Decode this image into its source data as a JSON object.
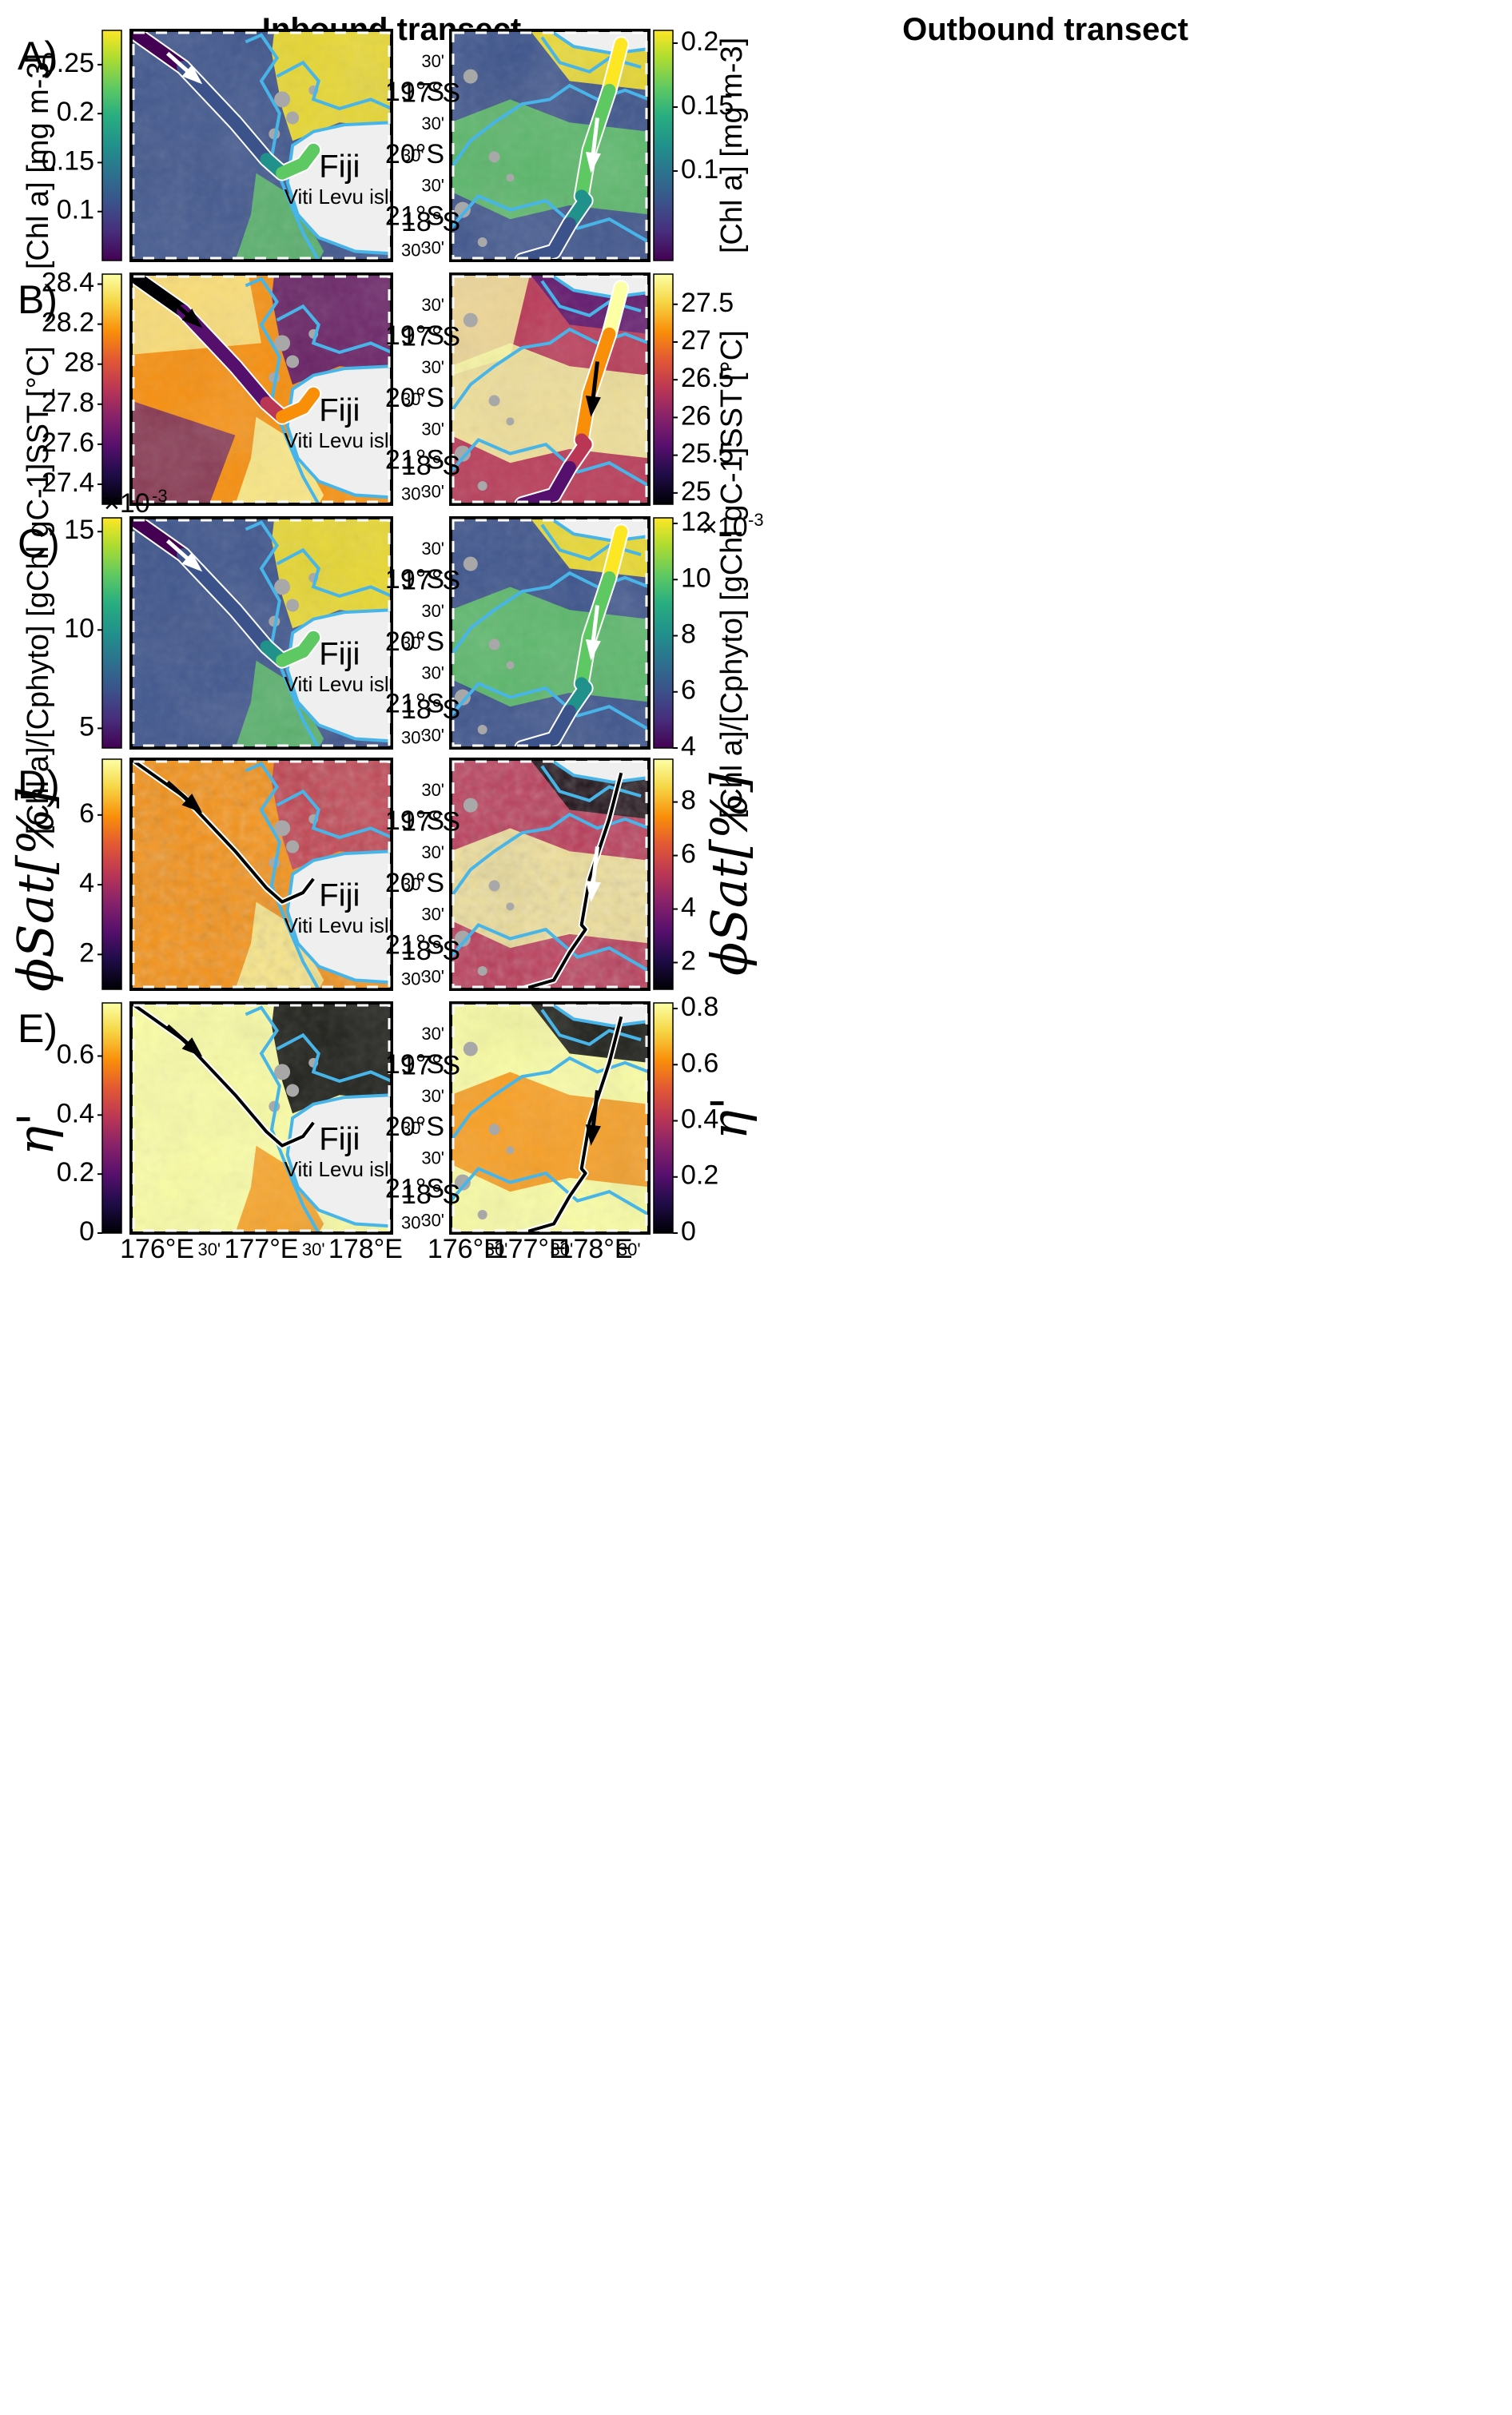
{
  "headers": {
    "left": "Inbound transect",
    "right": "Outbound transect"
  },
  "island": {
    "name": "Fiji",
    "subname": "Viti Levu isl."
  },
  "exponent": {
    "base": "×10",
    "power": "-3"
  },
  "lon_ticks": [
    "176°E",
    "30'",
    "177°E",
    "30'",
    "178°E"
  ],
  "lon_ticks_right": [
    "176°E",
    "30'",
    "177°E",
    "30'",
    "178°E",
    "30'"
  ],
  "lat_ticks_left": [
    "17°S",
    "30'",
    "18°S",
    "30'"
  ],
  "lat_ticks_right": [
    "30'",
    "19°S",
    "30'",
    "20°S",
    "30'",
    "21°S",
    "30'"
  ],
  "colors": {
    "contour": "#48b5e8",
    "island": "#efefef",
    "gap": "#a8a8a8",
    "frame": "#000000"
  },
  "chart_data": [
    {
      "type": "heatmap",
      "panel": "A)",
      "variable": "[Chl a]",
      "colormap": "viridis",
      "left": {
        "ticks": [
          "0.1",
          "0.15",
          "0.2",
          "0.25"
        ],
        "range": [
          0.05,
          0.285
        ],
        "ylabel": "[Chl a] [mg m-3]",
        "arrow": "white"
      },
      "right": {
        "ticks": [
          "0.1",
          "0.15",
          "0.2"
        ],
        "range": [
          0.03,
          0.21
        ],
        "ylabel": "[Chl a] [mg m-3]",
        "arrow": "white"
      }
    },
    {
      "type": "heatmap",
      "panel": "B)",
      "variable": "SST",
      "colormap": "inferno",
      "left": {
        "ticks": [
          "27.4",
          "27.6",
          "27.8",
          "28",
          "28.2",
          "28.4"
        ],
        "range": [
          27.3,
          28.45
        ],
        "ylabel": "SST [°C]",
        "arrow": "black"
      },
      "right": {
        "ticks": [
          "25",
          "25.5",
          "26",
          "26.5",
          "27",
          "27.5"
        ],
        "range": [
          24.85,
          27.9
        ],
        "ylabel": "SST [°C]",
        "arrow": "black"
      }
    },
    {
      "type": "heatmap",
      "panel": "C)",
      "variable": "[Chl a]/[Cphyto]",
      "colormap": "viridis",
      "left": {
        "ticks": [
          "5",
          "10",
          "15"
        ],
        "range": [
          4,
          15.7
        ],
        "ylabel": "[Chl a]/[Cphyto] [gChl gC-1]",
        "arrow": "white",
        "exponent": true
      },
      "right": {
        "ticks": [
          "4",
          "6",
          "8",
          "10",
          "12"
        ],
        "range": [
          4,
          12.2
        ],
        "ylabel": "[Chl a]/[Cphyto] [gChl gC-1]",
        "arrow": "white",
        "exponent": true
      }
    },
    {
      "type": "heatmap",
      "panel": "D)",
      "variable": "phi Sat",
      "colormap": "inferno",
      "left": {
        "ticks": [
          "2",
          "4",
          "6"
        ],
        "range": [
          1,
          7.6
        ],
        "ylabel": "ϕSat[%]",
        "arrow": "black"
      },
      "right": {
        "ticks": [
          "2",
          "4",
          "6",
          "8"
        ],
        "range": [
          1,
          9.6
        ],
        "ylabel": "ϕSat[%]",
        "arrow": "white"
      }
    },
    {
      "type": "heatmap",
      "panel": "E)",
      "variable": "eta prime",
      "colormap": "inferno",
      "left": {
        "ticks": [
          "0",
          "0.2",
          "0.4",
          "0.6"
        ],
        "range": [
          0,
          0.78
        ],
        "ylabel": "η'",
        "arrow": "black"
      },
      "right": {
        "ticks": [
          "0",
          "0.2",
          "0.4",
          "0.6",
          "0.8"
        ],
        "range": [
          0,
          0.82
        ],
        "ylabel": "η'",
        "arrow": "black"
      }
    }
  ]
}
